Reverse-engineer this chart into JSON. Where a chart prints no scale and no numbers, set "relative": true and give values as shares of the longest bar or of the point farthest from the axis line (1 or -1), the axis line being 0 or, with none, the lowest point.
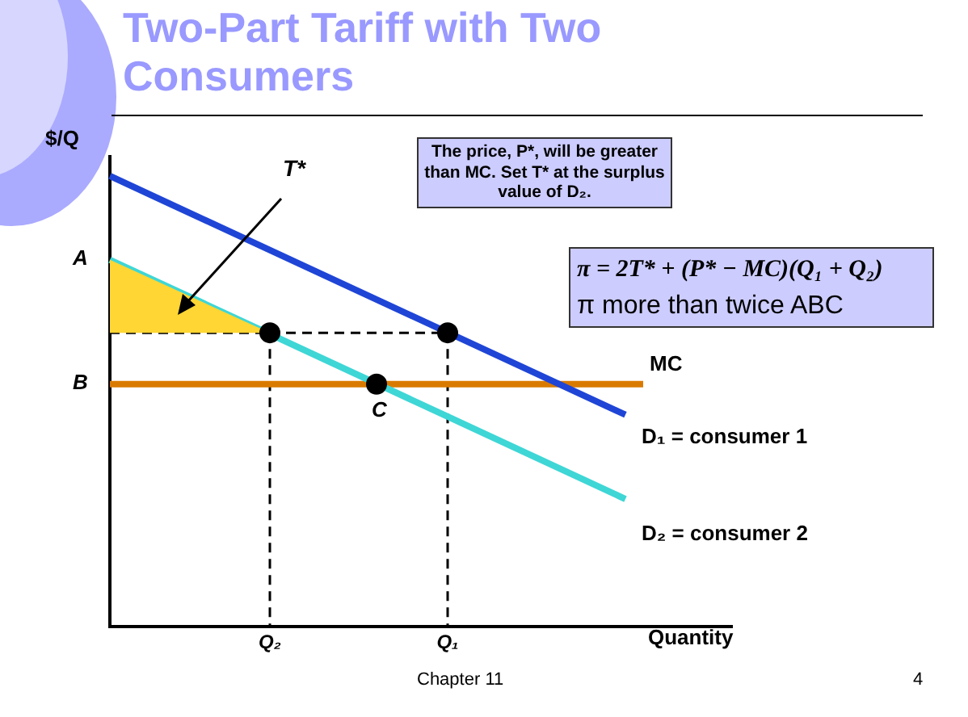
{
  "chart_data": {
    "type": "line",
    "title": "Two-Part Tariff with Two Consumers",
    "xlabel": "Quantity",
    "ylabel": "$/Q",
    "relative": true,
    "legend": false,
    "grid": false,
    "categories": [
      null,
      null,
      null,
      null,
      null,
      null,
      null,
      null,
      null,
      "Q₂",
      null,
      null,
      null,
      null,
      null,
      null,
      null,
      null,
      null,
      "Q₁",
      null,
      null,
      null,
      null,
      null,
      null,
      null,
      null,
      null,
      null,
      null,
      null,
      null,
      null,
      null,
      null
    ],
    "series": [
      {
        "type": "area",
        "color": "#ffd633",
        "values": [
          0.814,
          null,
          null,
          null,
          null,
          null,
          null,
          null,
          null,
          0.652,
          null,
          null,
          null,
          null,
          null,
          null,
          null,
          null,
          null,
          null,
          null,
          null,
          null,
          null,
          null,
          null,
          null,
          null,
          null,
          null,
          null,
          null,
          null,
          null,
          null,
          null
        ],
        "marker": "none"
      },
      {
        "type": "line",
        "name": "D₁ = consumer 1",
        "color": "#1f45d6",
        "values": [
          1,
          null,
          null,
          null,
          null,
          null,
          null,
          null,
          null,
          null,
          null,
          null,
          null,
          null,
          null,
          null,
          null,
          null,
          null,
          null,
          null,
          null,
          null,
          null,
          null,
          null,
          null,
          null,
          null,
          0.47,
          null,
          null,
          null,
          null,
          null,
          null
        ],
        "marker": "none",
        "line_style": "solid"
      },
      {
        "type": "line",
        "name": "D₂ = consumer 2",
        "color": "#3fd6d6",
        "values": [
          0.814,
          null,
          null,
          null,
          null,
          null,
          null,
          null,
          null,
          null,
          null,
          null,
          null,
          null,
          null,
          null,
          null,
          null,
          null,
          null,
          null,
          null,
          null,
          null,
          null,
          null,
          null,
          null,
          null,
          0.283,
          null,
          null,
          null,
          null,
          null,
          null
        ],
        "marker": "none",
        "line_style": "solid"
      },
      {
        "type": "line",
        "name": "MC",
        "color": "#d97a00",
        "values": [
          0.538,
          null,
          null,
          null,
          null,
          null,
          null,
          null,
          null,
          null,
          null,
          null,
          null,
          null,
          null,
          null,
          null,
          null,
          null,
          null,
          null,
          null,
          null,
          null,
          null,
          null,
          null,
          null,
          null,
          null,
          0.538,
          null,
          null,
          null,
          null,
          null
        ],
        "marker": "none",
        "line_style": "solid"
      },
      {
        "type": "line",
        "color": "#000000",
        "values": [
          0.652,
          null,
          null,
          null,
          null,
          null,
          null,
          null,
          null,
          0.652,
          null,
          null,
          null,
          null,
          null,
          null,
          null,
          null,
          null,
          null,
          null,
          null,
          null,
          null,
          null,
          null,
          null,
          null,
          null,
          null,
          null,
          null,
          null,
          null,
          null,
          null
        ],
        "marker": "none",
        "line_style": "dashed"
      },
      {
        "type": "line",
        "color": "#000000",
        "values": [
          null,
          null,
          null,
          null,
          null,
          null,
          null,
          null,
          null,
          0.652,
          null,
          null,
          null,
          null,
          null,
          null,
          null,
          null,
          null,
          0.652,
          null,
          null,
          null,
          null,
          null,
          null,
          null,
          null,
          null,
          null,
          null,
          null,
          null,
          null,
          null,
          null
        ],
        "marker": "none",
        "line_style": "dashed"
      },
      {
        "type": "line",
        "color": "#000000",
        "x": [
          "Q₂",
          "Q₂"
        ],
        "values": [
          0.652,
          0
        ],
        "marker": "none",
        "line_style": "dashed"
      },
      {
        "type": "line",
        "color": "#000000",
        "x": [
          "Q₁",
          "Q₁"
        ],
        "values": [
          0.652,
          0
        ],
        "marker": "none",
        "line_style": "dashed"
      },
      {
        "type": "scatter",
        "color": "#000000",
        "values": [
          null,
          null,
          null,
          null,
          null,
          null,
          null,
          null,
          null,
          0.652,
          null,
          null,
          null,
          null,
          null,
          0.538,
          null,
          null,
          null,
          0.652,
          null,
          null,
          null,
          null,
          null,
          null,
          null,
          null,
          null,
          null,
          null,
          null,
          null,
          null,
          null,
          null
        ],
        "marker": "circle"
      }
    ],
    "annotations": [
      "T*",
      "A",
      "B",
      "C",
      "The price, P*, will be greater than MC.  Set T* at the surplus value of D₂.",
      "π = 2T* + (P* − MC)(Q₁ + Q₂)",
      "π  more than twice ABC",
      "Chapter 11",
      "4"
    ]
  }
}
